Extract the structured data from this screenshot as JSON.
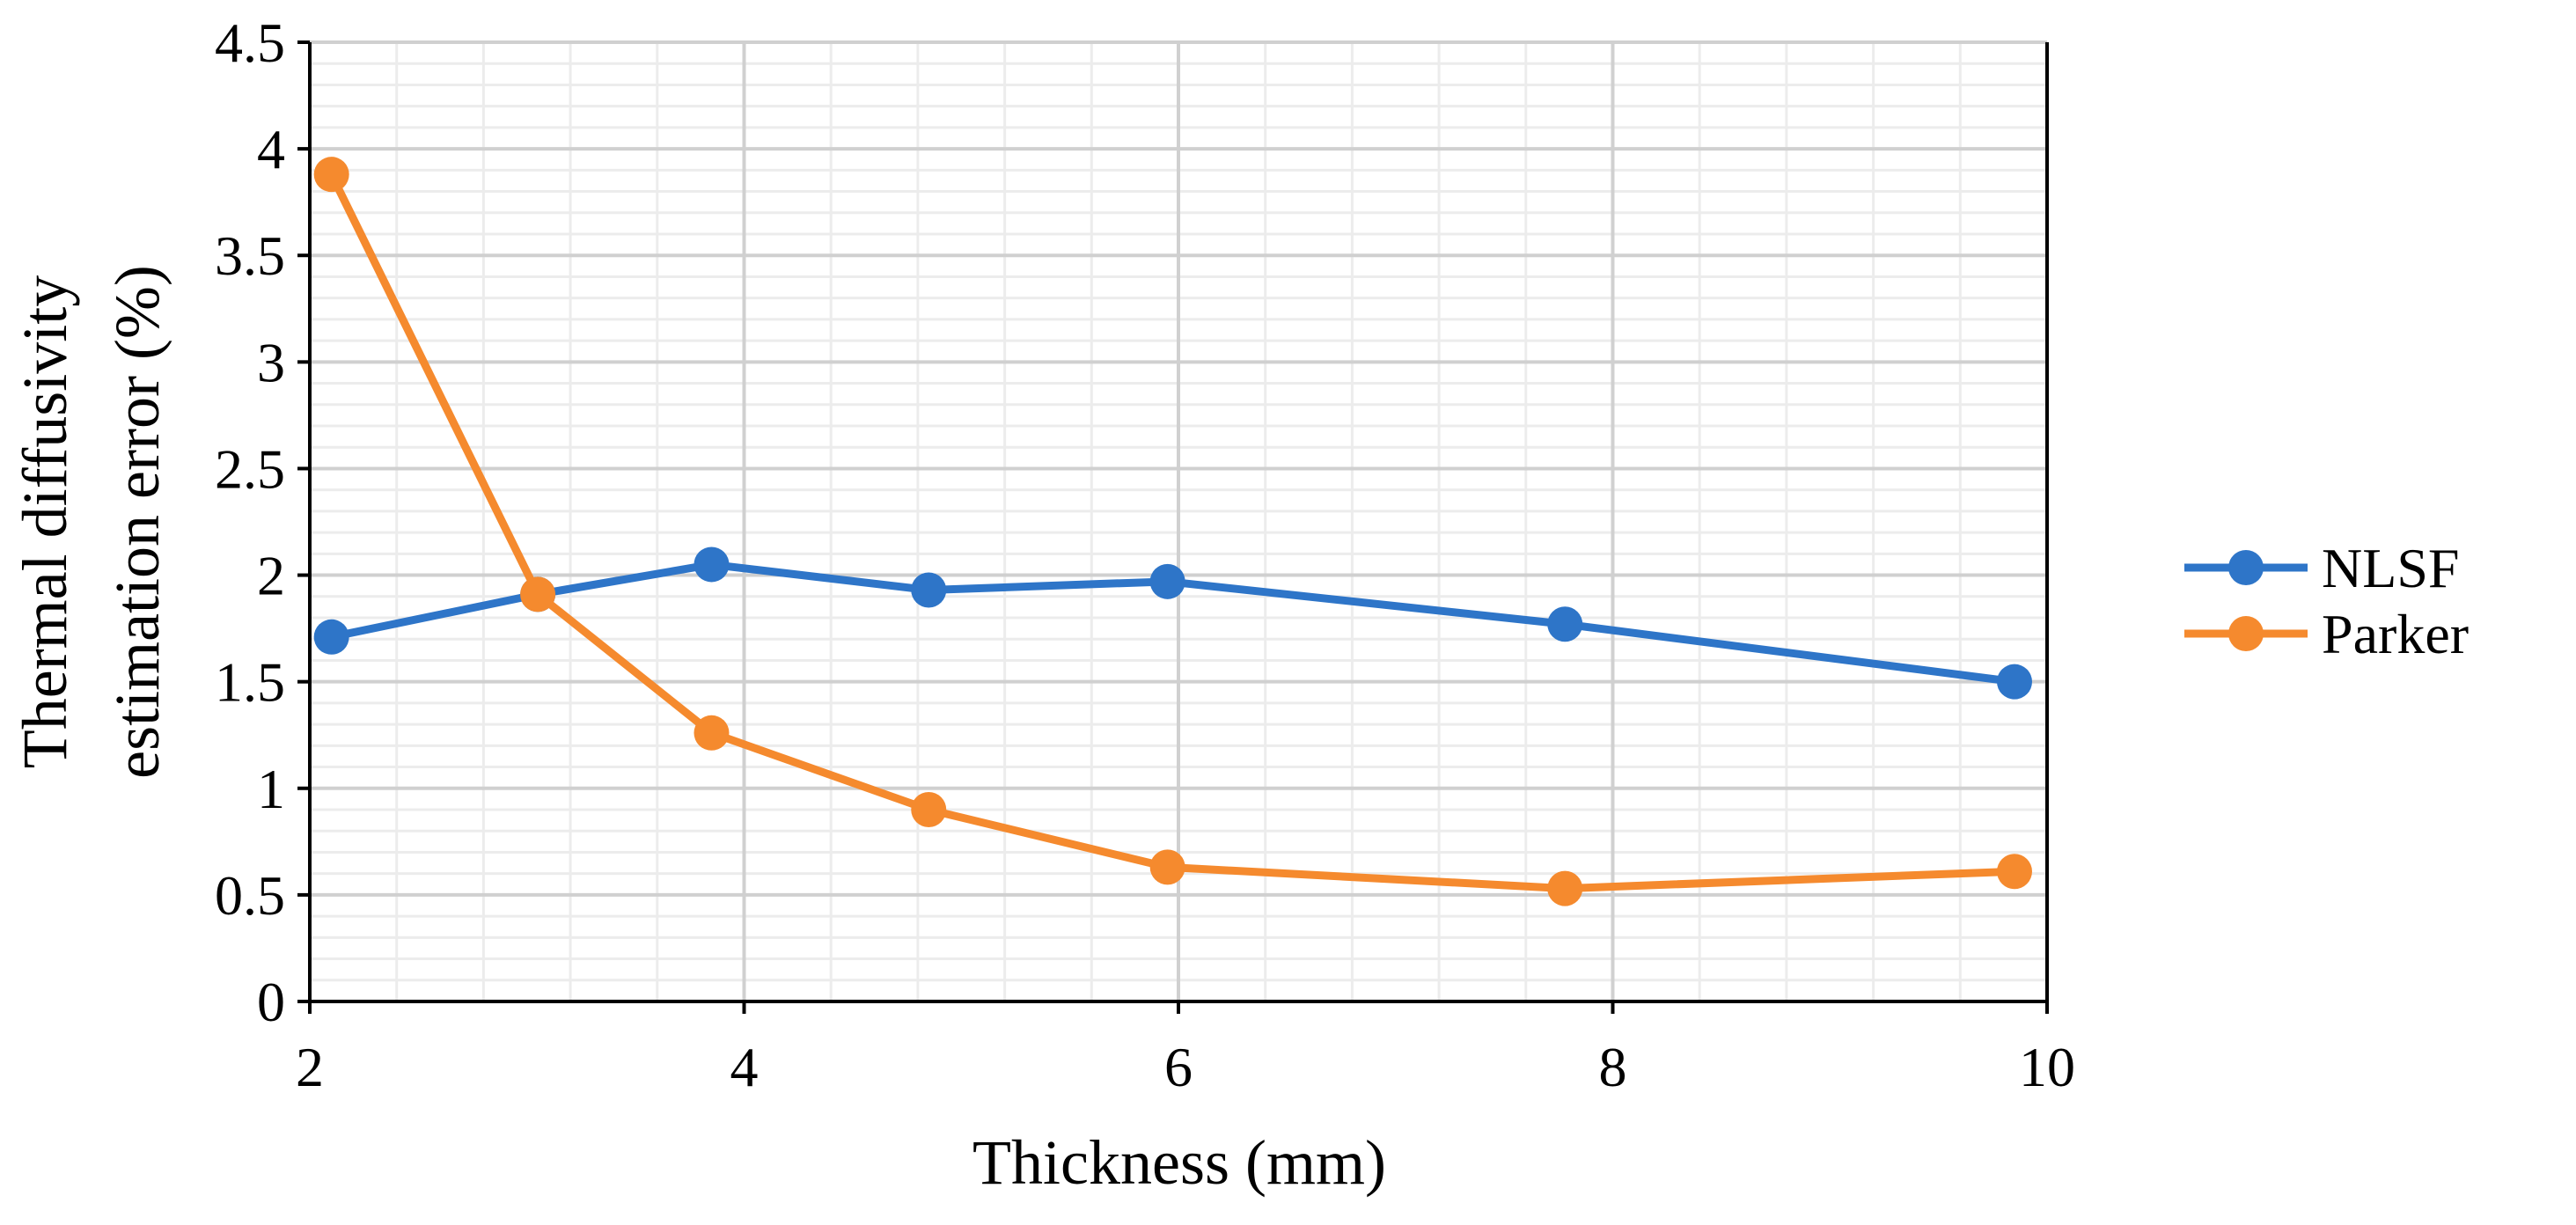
{
  "chart_data": {
    "type": "line",
    "title": "",
    "xlabel": "Thickness (mm)",
    "ylabel_lines": [
      "Thermal diffusivity",
      "estimation error (%)"
    ],
    "xlim": [
      2,
      10
    ],
    "ylim": [
      0,
      4.5
    ],
    "x_ticks": [
      "2",
      "4",
      "6",
      "8",
      "10"
    ],
    "y_ticks": [
      "0",
      "0.5",
      "1",
      "1.5",
      "2",
      "2.5",
      "3",
      "3.5",
      "4",
      "4.5"
    ],
    "grid": true,
    "legend_position": "right",
    "series": [
      {
        "name": "NLSF",
        "color": "#2E75C8",
        "x": [
          2.1,
          3.05,
          3.85,
          4.85,
          5.95,
          7.78,
          9.85
        ],
        "y": [
          1.71,
          1.91,
          2.05,
          1.93,
          1.97,
          1.77,
          1.5
        ]
      },
      {
        "name": "Parker",
        "color": "#F58A2E",
        "x": [
          2.1,
          3.05,
          3.85,
          4.85,
          5.95,
          7.78,
          9.85
        ],
        "y": [
          3.88,
          1.91,
          1.26,
          0.9,
          0.63,
          0.53,
          0.61
        ]
      }
    ]
  }
}
